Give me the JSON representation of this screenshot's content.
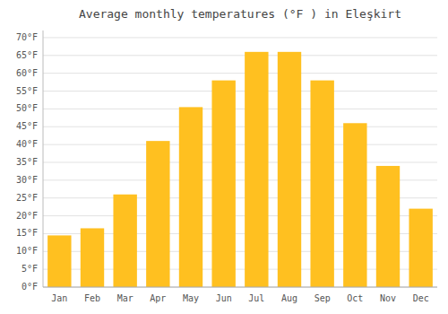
{
  "chart_data": {
    "type": "bar",
    "title": "Average monthly temperatures (°F ) in Eleşkirt",
    "categories": [
      "Jan",
      "Feb",
      "Mar",
      "Apr",
      "May",
      "Jun",
      "Jul",
      "Aug",
      "Sep",
      "Oct",
      "Nov",
      "Dec"
    ],
    "values": [
      14.5,
      16.5,
      26,
      41,
      50.5,
      58,
      66,
      66,
      58,
      46,
      34,
      22
    ],
    "color": "#FFC020",
    "ylim": [
      0,
      72
    ],
    "yticks": [
      {
        "value": 0,
        "label": "0°F"
      },
      {
        "value": 5,
        "label": "5°F"
      },
      {
        "value": 10,
        "label": "10°F"
      },
      {
        "value": 15,
        "label": "15°F"
      },
      {
        "value": 20,
        "label": "20°F"
      },
      {
        "value": 25,
        "label": "25°F"
      },
      {
        "value": 30,
        "label": "30°F"
      },
      {
        "value": 35,
        "label": "35°F"
      },
      {
        "value": 40,
        "label": "40°F"
      },
      {
        "value": 45,
        "label": "45°F"
      },
      {
        "value": 50,
        "label": "50°F"
      },
      {
        "value": 55,
        "label": "55°F"
      },
      {
        "value": 60,
        "label": "60°F"
      },
      {
        "value": 65,
        "label": "65°F"
      },
      {
        "value": 70,
        "label": "70°F"
      }
    ],
    "grid": true
  }
}
